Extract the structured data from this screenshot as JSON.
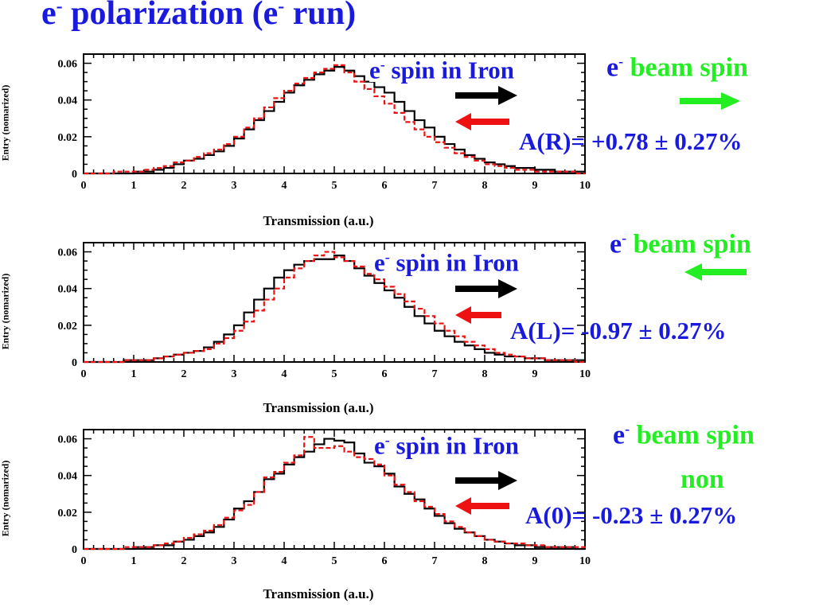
{
  "title": {
    "main": "e",
    "sup": "-",
    "rest1": " polarization (e",
    "sup2": "-",
    "rest2": " run)"
  },
  "colors": {
    "blue": "#1a1adf",
    "green": "#22ee22",
    "red": "#ee1111",
    "black": "#000000"
  },
  "panels": [
    {
      "iron_label": {
        "e": "e",
        "sup": "-",
        "text": " spin in Iron"
      },
      "beam_label": {
        "e": "e",
        "sup": "-",
        "text": " beam spin"
      },
      "beam_sub": "",
      "beam_arrow": "right",
      "asymmetry": "A(R)= +0.78 ± 0.27%"
    },
    {
      "iron_label": {
        "e": "e",
        "sup": "-",
        "text": " spin in Iron"
      },
      "beam_label": {
        "e": "e",
        "sup": "-",
        "text": " beam spin"
      },
      "beam_sub": "",
      "beam_arrow": "left",
      "asymmetry": "A(L)= -0.97 ± 0.27%"
    },
    {
      "iron_label": {
        "e": "e",
        "sup": "-",
        "text": " spin in Iron"
      },
      "beam_label": {
        "e": "e",
        "sup": "-",
        "text": " beam spin"
      },
      "beam_sub": "non",
      "beam_arrow": "none",
      "asymmetry": "A(0)= -0.23 ± 0.27%"
    }
  ],
  "chart_data": [
    {
      "type": "line",
      "xlabel": "Transmission (a.u.)",
      "ylabel": "Entry (nomarized)",
      "xlim": [
        0,
        10
      ],
      "ylim": [
        0,
        0.065
      ],
      "xticks": [
        "0",
        "1",
        "2",
        "3",
        "4",
        "5",
        "6",
        "7",
        "8",
        "9",
        "10"
      ],
      "yticks": [
        "0",
        "0.02",
        "0.04",
        "0.06"
      ],
      "x": [
        0,
        0.2,
        0.4,
        0.6,
        0.8,
        1,
        1.2,
        1.4,
        1.6,
        1.8,
        2,
        2.2,
        2.4,
        2.6,
        2.8,
        3,
        3.2,
        3.4,
        3.6,
        3.8,
        4,
        4.2,
        4.4,
        4.6,
        4.8,
        5,
        5.2,
        5.4,
        5.6,
        5.8,
        6,
        6.2,
        6.4,
        6.6,
        6.8,
        7,
        7.2,
        7.4,
        7.6,
        7.8,
        8,
        8.2,
        8.4,
        8.6,
        8.8,
        9,
        9.2,
        9.4,
        9.6,
        9.8
      ],
      "series": [
        {
          "name": "black",
          "values": [
            0,
            0,
            0,
            0,
            0,
            0.001,
            0.001,
            0.002,
            0.003,
            0.005,
            0.007,
            0.008,
            0.01,
            0.012,
            0.015,
            0.019,
            0.024,
            0.029,
            0.034,
            0.039,
            0.044,
            0.048,
            0.051,
            0.054,
            0.056,
            0.058,
            0.056,
            0.053,
            0.05,
            0.047,
            0.044,
            0.039,
            0.034,
            0.029,
            0.025,
            0.02,
            0.016,
            0.013,
            0.01,
            0.008,
            0.006,
            0.005,
            0.004,
            0.003,
            0.003,
            0.002,
            0.002,
            0.001,
            0.001,
            0.001
          ]
        },
        {
          "name": "red",
          "values": [
            0,
            0,
            0,
            0.001,
            0.001,
            0.001,
            0.002,
            0.003,
            0.004,
            0.006,
            0.007,
            0.009,
            0.011,
            0.013,
            0.016,
            0.02,
            0.025,
            0.03,
            0.036,
            0.041,
            0.045,
            0.049,
            0.052,
            0.055,
            0.057,
            0.059,
            0.055,
            0.05,
            0.046,
            0.042,
            0.038,
            0.033,
            0.028,
            0.024,
            0.02,
            0.017,
            0.014,
            0.011,
            0.009,
            0.007,
            0.005,
            0.004,
            0.003,
            0.002,
            0.002,
            0.001,
            0.001,
            0.001,
            0.001,
            0
          ]
        }
      ]
    },
    {
      "type": "line",
      "xlabel": "Transmission (a.u.)",
      "ylabel": "Entry (nomarized)",
      "xlim": [
        0,
        10
      ],
      "ylim": [
        0,
        0.065
      ],
      "xticks": [
        "0",
        "1",
        "2",
        "3",
        "4",
        "5",
        "6",
        "7",
        "8",
        "9",
        "10"
      ],
      "yticks": [
        "0",
        "0.02",
        "0.04",
        "0.06"
      ],
      "x": [
        0,
        0.2,
        0.4,
        0.6,
        0.8,
        1,
        1.2,
        1.4,
        1.6,
        1.8,
        2,
        2.2,
        2.4,
        2.6,
        2.8,
        3,
        3.2,
        3.4,
        3.6,
        3.8,
        4,
        4.2,
        4.4,
        4.6,
        4.8,
        5,
        5.2,
        5.4,
        5.6,
        5.8,
        6,
        6.2,
        6.4,
        6.6,
        6.8,
        7,
        7.2,
        7.4,
        7.6,
        7.8,
        8,
        8.2,
        8.4,
        8.6,
        8.8,
        9,
        9.2,
        9.4,
        9.6,
        9.8
      ],
      "series": [
        {
          "name": "black",
          "values": [
            0,
            0,
            0,
            0,
            0.001,
            0.001,
            0.001,
            0.002,
            0.003,
            0.004,
            0.005,
            0.006,
            0.008,
            0.011,
            0.015,
            0.02,
            0.027,
            0.034,
            0.04,
            0.046,
            0.05,
            0.053,
            0.055,
            0.056,
            0.056,
            0.058,
            0.055,
            0.051,
            0.047,
            0.043,
            0.039,
            0.035,
            0.03,
            0.025,
            0.021,
            0.017,
            0.014,
            0.011,
            0.009,
            0.007,
            0.005,
            0.004,
            0.003,
            0.003,
            0.002,
            0.002,
            0.001,
            0.001,
            0.001,
            0.001
          ]
        },
        {
          "name": "red",
          "values": [
            0,
            0,
            0,
            0,
            0.001,
            0.001,
            0.001,
            0.002,
            0.003,
            0.004,
            0.005,
            0.006,
            0.007,
            0.01,
            0.013,
            0.017,
            0.022,
            0.028,
            0.034,
            0.04,
            0.046,
            0.051,
            0.055,
            0.058,
            0.06,
            0.057,
            0.055,
            0.052,
            0.048,
            0.045,
            0.041,
            0.037,
            0.033,
            0.029,
            0.025,
            0.021,
            0.017,
            0.014,
            0.011,
            0.009,
            0.007,
            0.005,
            0.004,
            0.003,
            0.002,
            0.002,
            0.001,
            0.001,
            0.001,
            0
          ]
        }
      ]
    },
    {
      "type": "line",
      "xlabel": "Transmission (a.u.)",
      "ylabel": "Entry (nomarized)",
      "xlim": [
        0,
        10
      ],
      "ylim": [
        0,
        0.065
      ],
      "xticks": [
        "0",
        "1",
        "2",
        "3",
        "4",
        "5",
        "6",
        "7",
        "8",
        "9",
        "10"
      ],
      "yticks": [
        "0",
        "0.02",
        "0.04",
        "0.06"
      ],
      "x": [
        0,
        0.2,
        0.4,
        0.6,
        0.8,
        1,
        1.2,
        1.4,
        1.6,
        1.8,
        2,
        2.2,
        2.4,
        2.6,
        2.8,
        3,
        3.2,
        3.4,
        3.6,
        3.8,
        4,
        4.2,
        4.4,
        4.6,
        4.8,
        5,
        5.2,
        5.4,
        5.6,
        5.8,
        6,
        6.2,
        6.4,
        6.6,
        6.8,
        7,
        7.2,
        7.4,
        7.6,
        7.8,
        8,
        8.2,
        8.4,
        8.6,
        8.8,
        9,
        9.2,
        9.4,
        9.6,
        9.8
      ],
      "series": [
        {
          "name": "black",
          "values": [
            0,
            0,
            0,
            0,
            0,
            0.001,
            0.001,
            0.002,
            0.002,
            0.004,
            0.005,
            0.007,
            0.009,
            0.012,
            0.016,
            0.022,
            0.026,
            0.031,
            0.038,
            0.041,
            0.046,
            0.05,
            0.053,
            0.057,
            0.06,
            0.059,
            0.058,
            0.052,
            0.047,
            0.045,
            0.041,
            0.034,
            0.03,
            0.027,
            0.022,
            0.018,
            0.014,
            0.011,
            0.009,
            0.007,
            0.005,
            0.004,
            0.003,
            0.002,
            0.002,
            0.001,
            0.001,
            0.001,
            0.001,
            0
          ]
        },
        {
          "name": "red",
          "values": [
            0,
            0,
            0,
            0,
            0.001,
            0.001,
            0.001,
            0.002,
            0.003,
            0.004,
            0.006,
            0.008,
            0.01,
            0.013,
            0.017,
            0.021,
            0.024,
            0.031,
            0.039,
            0.042,
            0.047,
            0.051,
            0.061,
            0.055,
            0.055,
            0.056,
            0.053,
            0.05,
            0.049,
            0.046,
            0.04,
            0.035,
            0.031,
            0.026,
            0.023,
            0.019,
            0.015,
            0.012,
            0.009,
            0.007,
            0.005,
            0.004,
            0.003,
            0.003,
            0.002,
            0.002,
            0.001,
            0.001,
            0.001,
            0.001
          ]
        }
      ]
    }
  ]
}
